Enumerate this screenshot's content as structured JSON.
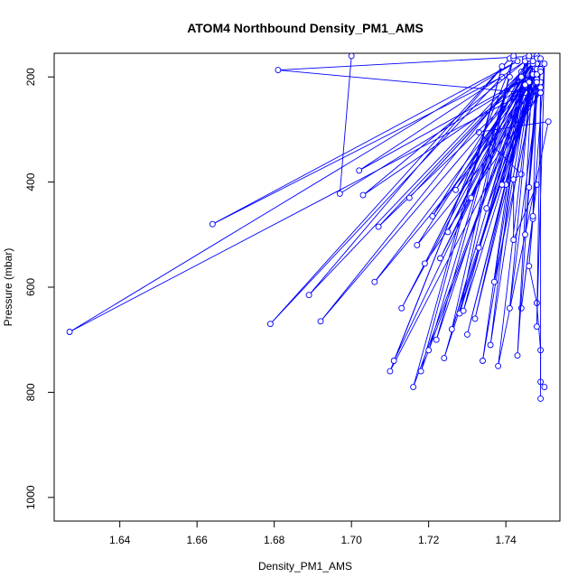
{
  "chart_data": {
    "type": "line",
    "title": "ATOM4 Northbound Density_PM1_AMS",
    "xlabel": "Density_PM1_AMS",
    "ylabel": "Pressure (mbar)",
    "xlim": [
      1.623,
      1.754
    ],
    "ylim": [
      1045,
      155
    ],
    "y_reversed": true,
    "x_ticks": [
      1.64,
      1.66,
      1.68,
      1.7,
      1.72,
      1.74
    ],
    "x_tick_labels": [
      "1.64",
      "1.66",
      "1.68",
      "1.70",
      "1.72",
      "1.74"
    ],
    "y_ticks": [
      200,
      400,
      600,
      800,
      1000
    ],
    "y_tick_labels": [
      "200",
      "400",
      "600",
      "800",
      "1000"
    ],
    "grid": false,
    "color": "#0000ff",
    "series": [
      {
        "x": [
          1.748,
          1.681,
          1.745,
          1.627,
          1.743,
          1.664,
          1.739,
          1.679,
          1.741,
          1.689,
          1.744,
          1.692,
          1.749,
          1.706,
          1.749,
          1.71,
          1.742,
          1.711,
          1.745,
          1.716,
          1.739,
          1.718,
          1.748,
          1.72,
          1.741,
          1.722,
          1.746,
          1.724,
          1.748,
          1.726,
          1.742,
          1.728,
          1.747,
          1.73,
          1.748,
          1.732,
          1.746,
          1.734,
          1.745,
          1.736,
          1.747,
          1.738,
          1.751,
          1.733,
          1.744,
          1.74,
          1.742,
          1.742,
          1.748,
          1.744,
          1.747,
          1.746,
          1.748,
          1.749,
          1.749,
          1.75
        ],
        "y": [
          160,
          187,
          230,
          685,
          170,
          480,
          200,
          670,
          165,
          615,
          190,
          665,
          175,
          590,
          210,
          760,
          165,
          740,
          220,
          790,
          180,
          760,
          165,
          720,
          200,
          700,
          170,
          735,
          185,
          680,
          160,
          650,
          195,
          690,
          175,
          660,
          210,
          740,
          165,
          710,
          180,
          750,
          285,
          305,
          385,
          405,
          395,
          510,
          405,
          640,
          470,
          560,
          630,
          720,
          780,
          790
        ]
      },
      {
        "x": [
          1.7,
          1.697,
          1.747,
          1.702,
          1.745,
          1.703,
          1.746,
          1.707,
          1.748,
          1.713,
          1.744,
          1.715,
          1.747,
          1.717,
          1.749,
          1.719,
          1.746,
          1.721,
          1.748,
          1.723,
          1.745,
          1.725,
          1.747,
          1.727,
          1.748,
          1.729,
          1.746,
          1.731,
          1.749,
          1.733,
          1.747,
          1.735,
          1.748,
          1.737,
          1.746,
          1.739,
          1.749,
          1.741,
          1.747,
          1.743,
          1.748,
          1.745,
          1.749,
          1.746,
          1.748,
          1.747,
          1.75,
          1.748,
          1.749,
          1.749
        ],
        "y": [
          160,
          422,
          195,
          378,
          170,
          425,
          210,
          485,
          165,
          640,
          200,
          430,
          175,
          520,
          230,
          555,
          165,
          465,
          185,
          545,
          215,
          495,
          170,
          415,
          195,
          645,
          165,
          430,
          185,
          525,
          175,
          450,
          205,
          590,
          160,
          405,
          190,
          640,
          170,
          730,
          195,
          500,
          165,
          410,
          210,
          465,
          175,
          675,
          220,
          812
        ]
      }
    ]
  }
}
